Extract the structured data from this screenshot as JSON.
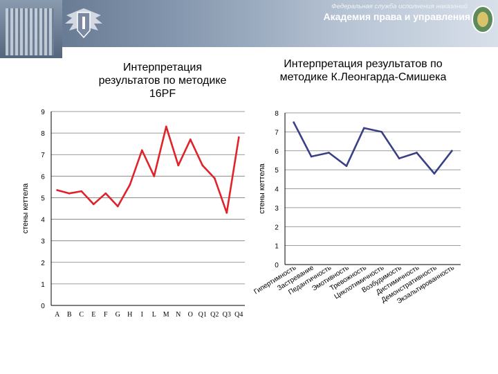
{
  "header": {
    "org_subtitle": "Федеральная служба исполнения наказаний",
    "org_title": "Академия права и управления"
  },
  "chart_data": [
    {
      "type": "line",
      "title": "Интерпретация результатов по методике 16PF",
      "ylabel": "стены кеттела",
      "xlabel": "",
      "categories": [
        "A",
        "B",
        "C",
        "E",
        "F",
        "G",
        "H",
        "I",
        "L",
        "M",
        "N",
        "O",
        "Q1",
        "Q2",
        "Q3",
        "Q4"
      ],
      "values": [
        5.35,
        5.2,
        5.3,
        4.7,
        5.2,
        4.6,
        5.6,
        7.2,
        6.0,
        8.3,
        6.5,
        7.7,
        6.5,
        5.9,
        4.3,
        7.8
      ],
      "ylim": [
        0,
        9
      ],
      "yticks": [
        0,
        1,
        2,
        3,
        4,
        5,
        6,
        7,
        8,
        9
      ],
      "grid": "horizontal",
      "color": "#e0222a"
    },
    {
      "type": "line",
      "title": "Интерпретация результатов по методике К.Леонгарда-Смишека",
      "ylabel": "стены кеттела",
      "xlabel": "",
      "categories": [
        "Гипертимность",
        "Застревание",
        "Педантичность",
        "Эмотивность",
        "Тревожность",
        "Циклотимичность",
        "Возбудимость",
        "Дистимичность",
        "Демонстративность",
        "Экзальтированность"
      ],
      "values": [
        7.5,
        5.7,
        5.9,
        5.2,
        7.2,
        7.0,
        5.6,
        5.9,
        4.8,
        6.0
      ],
      "ylim": [
        0,
        8
      ],
      "yticks": [
        0,
        1,
        2,
        3,
        4,
        5,
        6,
        7,
        8
      ],
      "grid": "horizontal",
      "color": "#3a3f86"
    }
  ]
}
